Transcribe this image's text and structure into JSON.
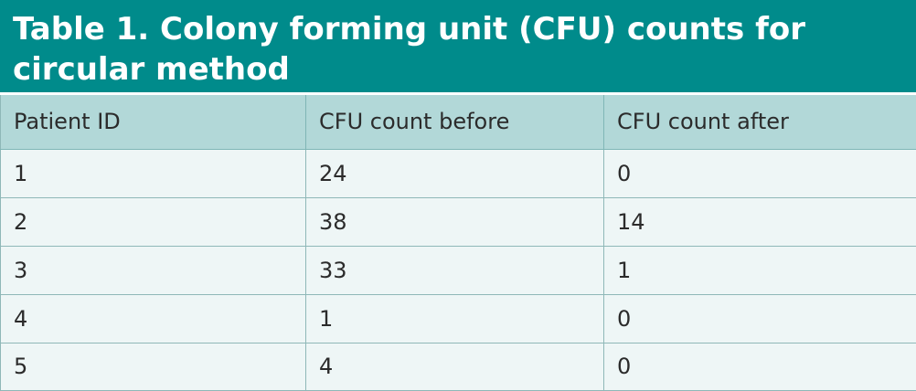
{
  "title": "Table 1. Colony forming unit (CFU) counts for circular method",
  "columns": [
    "Patient ID",
    "CFU count before",
    "CFU count after"
  ],
  "rows": [
    [
      "1",
      "24",
      "0"
    ],
    [
      "2",
      "38",
      "14"
    ],
    [
      "3",
      "33",
      "1"
    ],
    [
      "4",
      "1",
      "0"
    ],
    [
      "5",
      "4",
      "0"
    ]
  ],
  "colors": {
    "title_background": "#008b8b",
    "header_background": "#b2d8d8",
    "row_background": "#eef6f6"
  }
}
